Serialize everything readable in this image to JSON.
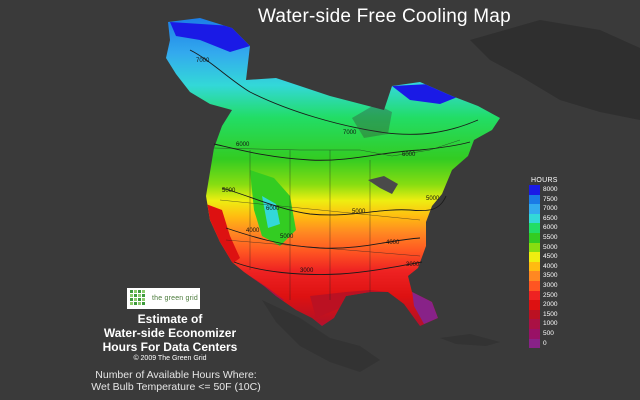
{
  "header": {
    "title": "Water-side Free Cooling Map"
  },
  "legend": {
    "title": "HOURS",
    "items": [
      {
        "label": "8000",
        "color": "#1a1ae6"
      },
      {
        "label": "7500",
        "color": "#1a7ae6"
      },
      {
        "label": "7000",
        "color": "#33aaee"
      },
      {
        "label": "6500",
        "color": "#33d8d8"
      },
      {
        "label": "6000",
        "color": "#22dd66"
      },
      {
        "label": "5500",
        "color": "#33cc22"
      },
      {
        "label": "5000",
        "color": "#88dd11"
      },
      {
        "label": "4500",
        "color": "#eeee11"
      },
      {
        "label": "4000",
        "color": "#ffbb11"
      },
      {
        "label": "3500",
        "color": "#ff8822"
      },
      {
        "label": "3000",
        "color": "#ff5522"
      },
      {
        "label": "2500",
        "color": "#ee2222"
      },
      {
        "label": "2000",
        "color": "#dd1111"
      },
      {
        "label": "1500",
        "color": "#bb1122"
      },
      {
        "label": "1000",
        "color": "#aa1144"
      },
      {
        "label": "500",
        "color": "#991166"
      },
      {
        "label": "0",
        "color": "#882288"
      }
    ]
  },
  "contours": {
    "labels": [
      "7000",
      "7000",
      "6000",
      "6000",
      "5000",
      "5000",
      "5000",
      "4000",
      "4000",
      "3000",
      "6000",
      "5000",
      "3000"
    ]
  },
  "branding": {
    "logo_text": "the green grid",
    "estimate_lines": [
      "Estimate of",
      "Water-side Economizer",
      "Hours For Data Centers"
    ],
    "copyright": "© 2009 The Green Grid"
  },
  "note": {
    "lines": [
      "Number of Available Hours Where:",
      "Wet Bulb Temperature <= 50F (10C)"
    ]
  }
}
